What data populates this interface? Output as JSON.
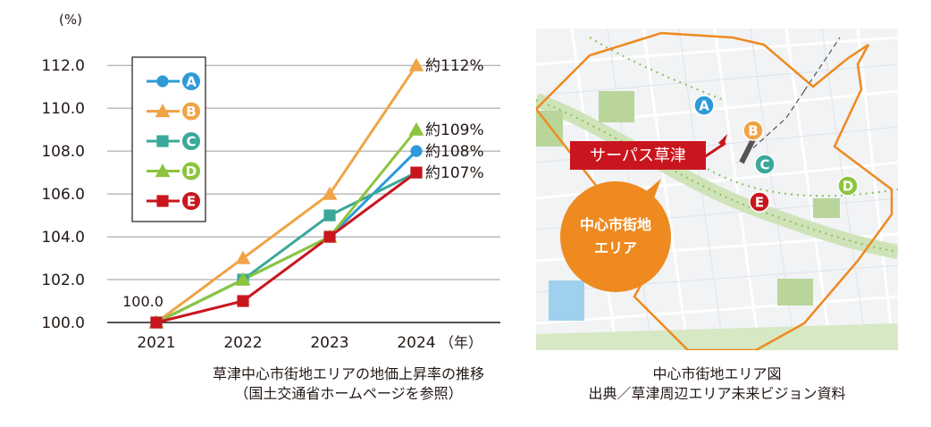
{
  "chart_data": {
    "type": "line",
    "title": "草津中心市街地エリアの地価上昇率の推移",
    "subtitle": "（国土交通省ホームページを参照）",
    "ylabel": "(%)",
    "xlabel": "（年）",
    "categories": [
      "2021",
      "2022",
      "2023",
      "2024"
    ],
    "yticks": [
      "100.0",
      "102.0",
      "104.0",
      "106.0",
      "108.0",
      "110.0",
      "112.0"
    ],
    "ylim": [
      100,
      112.8
    ],
    "grid": true,
    "legend_position": "top-left",
    "start_label": "100.0",
    "series": [
      {
        "name": "A",
        "color": "#2e9ad8",
        "marker": "circle",
        "values": [
          100,
          102,
          104,
          108
        ],
        "end_label": "約108%"
      },
      {
        "name": "B",
        "color": "#f0a446",
        "marker": "triangle",
        "values": [
          100,
          103,
          106,
          112
        ],
        "end_label": "約112%"
      },
      {
        "name": "C",
        "color": "#3aa89a",
        "marker": "square",
        "values": [
          100,
          102,
          105,
          107
        ],
        "end_label": ""
      },
      {
        "name": "D",
        "color": "#8cc43e",
        "marker": "triangle",
        "values": [
          100,
          102,
          104,
          109
        ],
        "end_label": "約109%"
      },
      {
        "name": "E",
        "color": "#c9161e",
        "marker": "square",
        "values": [
          100,
          101,
          104,
          107
        ],
        "end_label": "約107%"
      }
    ]
  },
  "map": {
    "callout": "サーパス草津",
    "area_label_line1": "中心市街地",
    "area_label_line2": "エリア",
    "points": [
      {
        "name": "A",
        "color": "#2e9ad8"
      },
      {
        "name": "B",
        "color": "#f0a446"
      },
      {
        "name": "C",
        "color": "#3aa89a"
      },
      {
        "name": "D",
        "color": "#8cc43e"
      },
      {
        "name": "E",
        "color": "#c9161e"
      }
    ],
    "caption_line1": "中心市街地エリア図",
    "caption_line2": "出典／草津周辺エリア未来ビジョン資料",
    "boundary_color": "#ee8a1f",
    "bubble_color": "#ee8a1f"
  }
}
